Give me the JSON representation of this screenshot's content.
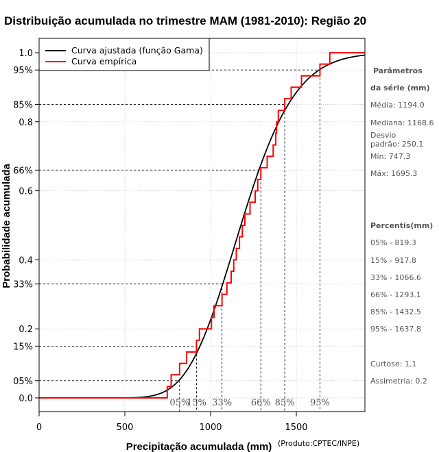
{
  "chart_data": {
    "type": "line",
    "title": "Distribuição acumulada no trimestre MAM (1981-2010): Região 20",
    "xlabel": "Precipitação acumulada (mm)",
    "ylabel": "Probabilidade acumulada",
    "xlim": [
      0,
      1900
    ],
    "ylim": [
      0,
      1.0
    ],
    "x_ticks": [
      0,
      500,
      1000,
      1500
    ],
    "y_ticks": [
      {
        "value": 0.0,
        "label": "0.0"
      },
      {
        "value": 0.05,
        "label": "05%"
      },
      {
        "value": 0.15,
        "label": "15%"
      },
      {
        "value": 0.2,
        "label": "0.2"
      },
      {
        "value": 0.33,
        "label": "33%"
      },
      {
        "value": 0.4,
        "label": "0.4"
      },
      {
        "value": 0.6,
        "label": "0.6"
      },
      {
        "value": 0.66,
        "label": "66%"
      },
      {
        "value": 0.8,
        "label": "0.8"
      },
      {
        "value": 0.85,
        "label": "85%"
      },
      {
        "value": 0.95,
        "label": "95%"
      },
      {
        "value": 1.0,
        "label": "1.0"
      }
    ],
    "grid": true,
    "legend": {
      "position": "top-left",
      "entries": [
        {
          "label": "Curva ajustada (função Gama)",
          "color": "#000000"
        },
        {
          "label": "Curva empírica",
          "color": "#ff0000"
        }
      ]
    },
    "fitted_curve": {
      "name": "Curva ajustada (função Gama)",
      "color": "#000000",
      "distribution": "gamma",
      "mean": 1194.0,
      "sd": 250.1,
      "x_range": [
        0,
        1900
      ]
    },
    "empirical_curve": {
      "name": "Curva empírica",
      "color": "#ff0000",
      "x": [
        0,
        747.3,
        770,
        819.3,
        860,
        917.8,
        935,
        1005,
        1020,
        1066.6,
        1095,
        1120,
        1135,
        1150,
        1168.6,
        1185,
        1200,
        1230,
        1260,
        1275,
        1293.1,
        1330,
        1365,
        1380,
        1385,
        1395,
        1432.5,
        1470,
        1530,
        1637.8,
        1695.3,
        1900
      ],
      "y": [
        0,
        0.033,
        0.067,
        0.1,
        0.133,
        0.167,
        0.2,
        0.233,
        0.267,
        0.3,
        0.333,
        0.367,
        0.4,
        0.433,
        0.467,
        0.5,
        0.533,
        0.567,
        0.6,
        0.633,
        0.667,
        0.7,
        0.733,
        0.767,
        0.8,
        0.833,
        0.867,
        0.9,
        0.933,
        0.967,
        1.0,
        1.0
      ]
    },
    "percentile_markers": [
      {
        "label": "05%",
        "p": 0.05,
        "x": 819.3
      },
      {
        "label": "15%",
        "p": 0.15,
        "x": 917.8
      },
      {
        "label": "33%",
        "p": 0.33,
        "x": 1066.6
      },
      {
        "label": "66%",
        "p": 0.66,
        "x": 1293.1
      },
      {
        "label": "85%",
        "p": 0.85,
        "x": 1432.5
      },
      {
        "label": "95%",
        "p": 0.95,
        "x": 1637.8
      }
    ]
  },
  "side_panel": {
    "params_heading_1": "Parâmetros",
    "params_heading_2": "da série (mm)",
    "media": "Média: 1194.0",
    "mediana": "Mediana: 1168.6",
    "desvio_1": "Desvio",
    "desvio_2": "padrão: 250.1",
    "min": "Mín: 747.3",
    "max": "Máx: 1695.3",
    "percentis_heading": "Percentis(mm)",
    "percentis": [
      "05% - 819.3",
      "15% - 917.8",
      "33% - 1066.6",
      "66% - 1293.1",
      "85% - 1432.5",
      "95% - 1637.8"
    ],
    "curtose": "Curtose: 1.1",
    "assimetria": "Assimetria: 0.2"
  },
  "credit": "(Produto:CPTEC/INPE)",
  "colors": {
    "fitted": "#000000",
    "empirical": "#ff0000",
    "grid": "#bbbbbb",
    "side_text": "#555555"
  }
}
